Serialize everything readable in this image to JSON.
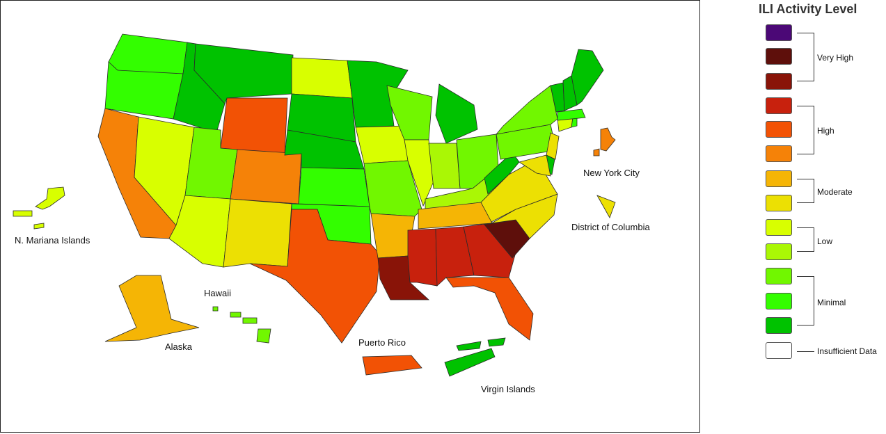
{
  "legend": {
    "title": "ILI Activity Level",
    "swatches": [
      "#4b0876",
      "#5e0f0b",
      "#891408",
      "#c8210d",
      "#f25205",
      "#f58208",
      "#f5b505",
      "#ece003",
      "#d8ff00",
      "#aaf705",
      "#71f700",
      "#33fe00",
      "#00c200",
      "#ffffff"
    ],
    "groups": [
      {
        "label": "Very High"
      },
      {
        "label": "High"
      },
      {
        "label": "Moderate"
      },
      {
        "label": "Low"
      },
      {
        "label": "Minimal"
      },
      {
        "label": "Insufficient Data"
      }
    ]
  },
  "map_labels": {
    "new_york_city": "New York City",
    "district_of_columbia": "District of Columbia",
    "n_mariana_islands": "N. Mariana Islands",
    "hawaii": "Hawaii",
    "alaska": "Alaska",
    "puerto_rico": "Puerto Rico",
    "virgin_islands": "Virgin Islands"
  },
  "regions": [
    {
      "name": "Washington",
      "level": "Minimal",
      "color": "#33fe00"
    },
    {
      "name": "Oregon",
      "level": "Minimal",
      "color": "#33fe00"
    },
    {
      "name": "California",
      "level": "High",
      "color": "#f58208"
    },
    {
      "name": "Nevada",
      "level": "Low",
      "color": "#d8ff00"
    },
    {
      "name": "Idaho",
      "level": "Minimal",
      "color": "#00c200"
    },
    {
      "name": "Montana",
      "level": "Minimal",
      "color": "#00c200"
    },
    {
      "name": "Wyoming",
      "level": "High",
      "color": "#f25205"
    },
    {
      "name": "Utah",
      "level": "Minimal",
      "color": "#71f700"
    },
    {
      "name": "Arizona",
      "level": "Low",
      "color": "#d8ff00"
    },
    {
      "name": "Colorado",
      "level": "High",
      "color": "#f58208"
    },
    {
      "name": "New Mexico",
      "level": "Moderate",
      "color": "#ece003"
    },
    {
      "name": "North Dakota",
      "level": "Low",
      "color": "#d8ff00"
    },
    {
      "name": "South Dakota",
      "level": "Minimal",
      "color": "#00c200"
    },
    {
      "name": "Nebraska",
      "level": "Minimal",
      "color": "#00c200"
    },
    {
      "name": "Kansas",
      "level": "Minimal",
      "color": "#33fe00"
    },
    {
      "name": "Oklahoma",
      "level": "Minimal",
      "color": "#33fe00"
    },
    {
      "name": "Texas",
      "level": "High",
      "color": "#f25205"
    },
    {
      "name": "Minnesota",
      "level": "Minimal",
      "color": "#00c200"
    },
    {
      "name": "Iowa",
      "level": "Low",
      "color": "#d8ff00"
    },
    {
      "name": "Missouri",
      "level": "Minimal",
      "color": "#71f700"
    },
    {
      "name": "Arkansas",
      "level": "Moderate",
      "color": "#f5b505"
    },
    {
      "name": "Louisiana",
      "level": "Very High",
      "color": "#891408"
    },
    {
      "name": "Wisconsin",
      "level": "Minimal",
      "color": "#71f700"
    },
    {
      "name": "Illinois",
      "level": "Low",
      "color": "#d8ff00"
    },
    {
      "name": "Michigan",
      "level": "Minimal",
      "color": "#00c200"
    },
    {
      "name": "Indiana",
      "level": "Low",
      "color": "#aaf705"
    },
    {
      "name": "Ohio",
      "level": "Minimal",
      "color": "#71f700"
    },
    {
      "name": "Kentucky",
      "level": "Low",
      "color": "#aaf705"
    },
    {
      "name": "Tennessee",
      "level": "Moderate",
      "color": "#f5b505"
    },
    {
      "name": "Mississippi",
      "level": "High",
      "color": "#c8210d"
    },
    {
      "name": "Alabama",
      "level": "High",
      "color": "#c8210d"
    },
    {
      "name": "Georgia",
      "level": "High",
      "color": "#c8210d"
    },
    {
      "name": "Florida",
      "level": "High",
      "color": "#f25205"
    },
    {
      "name": "South Carolina",
      "level": "Very High",
      "color": "#5e0f0b"
    },
    {
      "name": "North Carolina",
      "level": "Moderate",
      "color": "#ece003"
    },
    {
      "name": "Virginia",
      "level": "Moderate",
      "color": "#ece003"
    },
    {
      "name": "West Virginia",
      "level": "Minimal",
      "color": "#00c200"
    },
    {
      "name": "Pennsylvania",
      "level": "Minimal",
      "color": "#71f700"
    },
    {
      "name": "New York",
      "level": "Minimal",
      "color": "#71f700"
    },
    {
      "name": "New Jersey",
      "level": "Moderate",
      "color": "#ece003"
    },
    {
      "name": "Delaware",
      "level": "Minimal",
      "color": "#00c200"
    },
    {
      "name": "Maryland",
      "level": "Moderate",
      "color": "#ece003"
    },
    {
      "name": "Connecticut",
      "level": "Low",
      "color": "#d8ff00"
    },
    {
      "name": "Rhode Island",
      "level": "Minimal",
      "color": "#33fe00"
    },
    {
      "name": "Massachusetts",
      "level": "Minimal",
      "color": "#33fe00"
    },
    {
      "name": "Vermont",
      "level": "Minimal",
      "color": "#00c200"
    },
    {
      "name": "New Hampshire",
      "level": "Minimal",
      "color": "#00c200"
    },
    {
      "name": "Maine",
      "level": "Minimal",
      "color": "#00c200"
    },
    {
      "name": "Alaska",
      "level": "Moderate",
      "color": "#f5b505"
    },
    {
      "name": "Hawaii",
      "level": "Minimal",
      "color": "#71f700"
    },
    {
      "name": "Puerto Rico",
      "level": "High",
      "color": "#f25205"
    },
    {
      "name": "Virgin Islands",
      "level": "Minimal",
      "color": "#00c200"
    },
    {
      "name": "N. Mariana Islands",
      "level": "Low",
      "color": "#d8ff00"
    },
    {
      "name": "New York City",
      "level": "High",
      "color": "#f58208"
    },
    {
      "name": "District of Columbia",
      "level": "Moderate",
      "color": "#ece003"
    }
  ]
}
